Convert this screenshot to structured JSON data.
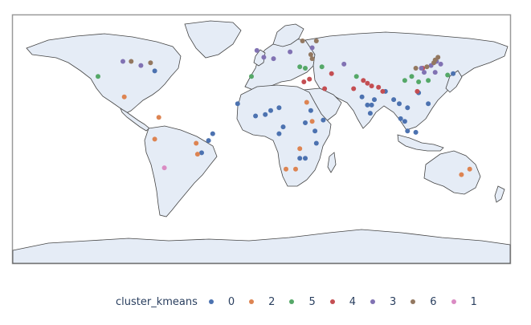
{
  "chart_data": {
    "type": "scatter_geo",
    "projection": "natural earth",
    "land_color": "#e5ecf6",
    "coastline_color": "#444444",
    "legend": {
      "title": "cluster_kmeans",
      "placement": "bottom",
      "items": [
        {
          "label": "0",
          "color": "#4c72b0"
        },
        {
          "label": "2",
          "color": "#dd8452"
        },
        {
          "label": "5",
          "color": "#55a868"
        },
        {
          "label": "4",
          "color": "#c44e52"
        },
        {
          "label": "3",
          "color": "#8172b3"
        },
        {
          "label": "6",
          "color": "#937860"
        },
        {
          "label": "1",
          "color": "#da8bc3"
        }
      ]
    },
    "points": [
      {
        "cluster": "0",
        "lon": -77,
        "lat": 38
      },
      {
        "cluster": "0",
        "lon": -17,
        "lat": 14
      },
      {
        "cluster": "0",
        "lon": -4,
        "lat": 5
      },
      {
        "cluster": "0",
        "lon": 3,
        "lat": 6
      },
      {
        "cluster": "0",
        "lon": 7,
        "lat": 9
      },
      {
        "cluster": "0",
        "lon": 13,
        "lat": 11
      },
      {
        "cluster": "0",
        "lon": 13,
        "lat": -8
      },
      {
        "cluster": "0",
        "lon": 16,
        "lat": -3
      },
      {
        "cluster": "0",
        "lon": 36,
        "lat": 9
      },
      {
        "cluster": "0",
        "lon": 39,
        "lat": -6
      },
      {
        "cluster": "0",
        "lon": 32,
        "lat": 0
      },
      {
        "cluster": "0",
        "lon": 45,
        "lat": 2
      },
      {
        "cluster": "0",
        "lon": 40,
        "lat": -15
      },
      {
        "cluster": "0",
        "lon": 28,
        "lat": -26
      },
      {
        "cluster": "0",
        "lon": 32,
        "lat": -26
      },
      {
        "cluster": "0",
        "lon": 73,
        "lat": 19
      },
      {
        "cluster": "0",
        "lon": 77,
        "lat": 13
      },
      {
        "cluster": "0",
        "lon": 80,
        "lat": 13
      },
      {
        "cluster": "0",
        "lon": 79,
        "lat": 7
      },
      {
        "cluster": "0",
        "lon": 82,
        "lat": 17
      },
      {
        "cluster": "0",
        "lon": 90,
        "lat": 23
      },
      {
        "cluster": "0",
        "lon": 96,
        "lat": 17
      },
      {
        "cluster": "0",
        "lon": 100,
        "lat": 14
      },
      {
        "cluster": "0",
        "lon": 106,
        "lat": 11
      },
      {
        "cluster": "0",
        "lon": 106,
        "lat": -6
      },
      {
        "cluster": "0",
        "lon": 112,
        "lat": -7
      },
      {
        "cluster": "0",
        "lon": 101,
        "lat": 3
      },
      {
        "cluster": "0",
        "lon": 104,
        "lat": 1
      },
      {
        "cluster": "0",
        "lon": 114,
        "lat": 22
      },
      {
        "cluster": "0",
        "lon": 121,
        "lat": 14
      },
      {
        "cluster": "0",
        "lon": 139,
        "lat": 36
      },
      {
        "cluster": "0",
        "lon": -35,
        "lat": -8
      },
      {
        "cluster": "0",
        "lon": -38,
        "lat": -13
      },
      {
        "cluster": "0",
        "lon": -43,
        "lat": -22
      },
      {
        "cluster": "2",
        "lon": -99,
        "lat": 19
      },
      {
        "cluster": "2",
        "lon": -74,
        "lat": 4
      },
      {
        "cluster": "2",
        "lon": -77,
        "lat": -12
      },
      {
        "cluster": "2",
        "lon": -47,
        "lat": -15
      },
      {
        "cluster": "2",
        "lon": -46,
        "lat": -23
      },
      {
        "cluster": "2",
        "lon": 33,
        "lat": 15
      },
      {
        "cluster": "2",
        "lon": 37,
        "lat": 1
      },
      {
        "cluster": "2",
        "lon": 18,
        "lat": -34
      },
      {
        "cluster": "2",
        "lon": 25,
        "lat": -34
      },
      {
        "cluster": "2",
        "lon": 28,
        "lat": -19
      },
      {
        "cluster": "2",
        "lon": 151,
        "lat": -34
      },
      {
        "cluster": "2",
        "lon": 145,
        "lat": -38
      },
      {
        "cluster": "5",
        "lon": -118,
        "lat": 34
      },
      {
        "cluster": "5",
        "lon": -7,
        "lat": 34
      },
      {
        "cluster": "5",
        "lon": 28,
        "lat": 41
      },
      {
        "cluster": "5",
        "lon": 32,
        "lat": 40
      },
      {
        "cluster": "5",
        "lon": 44,
        "lat": 41
      },
      {
        "cluster": "5",
        "lon": 69,
        "lat": 34
      },
      {
        "cluster": "5",
        "lon": 104,
        "lat": 31
      },
      {
        "cluster": "5",
        "lon": 109,
        "lat": 34
      },
      {
        "cluster": "5",
        "lon": 114,
        "lat": 30
      },
      {
        "cluster": "5",
        "lon": 121,
        "lat": 31
      },
      {
        "cluster": "5",
        "lon": 135,
        "lat": 35
      },
      {
        "cluster": "4",
        "lon": 31,
        "lat": 30
      },
      {
        "cluster": "4",
        "lon": 35,
        "lat": 32
      },
      {
        "cluster": "4",
        "lon": 46,
        "lat": 25
      },
      {
        "cluster": "4",
        "lon": 51,
        "lat": 36
      },
      {
        "cluster": "4",
        "lon": 67,
        "lat": 25
      },
      {
        "cluster": "4",
        "lon": 74,
        "lat": 31
      },
      {
        "cluster": "4",
        "lon": 77,
        "lat": 29
      },
      {
        "cluster": "4",
        "lon": 80,
        "lat": 27
      },
      {
        "cluster": "4",
        "lon": 85,
        "lat": 26
      },
      {
        "cluster": "4",
        "lon": 88,
        "lat": 23
      },
      {
        "cluster": "4",
        "lon": 113,
        "lat": 23
      },
      {
        "cluster": "4",
        "lon": 117,
        "lat": 40
      },
      {
        "cluster": "3",
        "lon": -100,
        "lat": 45
      },
      {
        "cluster": "3",
        "lon": -87,
        "lat": 42
      },
      {
        "cluster": "3",
        "lon": -3,
        "lat": 53
      },
      {
        "cluster": "3",
        "lon": 2,
        "lat": 48
      },
      {
        "cluster": "3",
        "lon": 9,
        "lat": 47
      },
      {
        "cluster": "3",
        "lon": 21,
        "lat": 52
      },
      {
        "cluster": "3",
        "lon": 37,
        "lat": 55
      },
      {
        "cluster": "3",
        "lon": 60,
        "lat": 43
      },
      {
        "cluster": "3",
        "lon": 116,
        "lat": 40
      },
      {
        "cluster": "3",
        "lon": 123,
        "lat": 42
      },
      {
        "cluster": "3",
        "lon": 126,
        "lat": 37
      },
      {
        "cluster": "3",
        "lon": 127,
        "lat": 45
      },
      {
        "cluster": "3",
        "lon": 130,
        "lat": 43
      },
      {
        "cluster": "3",
        "lon": 118,
        "lat": 37
      },
      {
        "cluster": "6",
        "lon": -94,
        "lat": 45
      },
      {
        "cluster": "6",
        "lon": -80,
        "lat": 44
      },
      {
        "cluster": "6",
        "lon": 30,
        "lat": 60
      },
      {
        "cluster": "6",
        "lon": 40,
        "lat": 60
      },
      {
        "cluster": "6",
        "lon": 36,
        "lat": 50
      },
      {
        "cluster": "6",
        "lon": 37,
        "lat": 47
      },
      {
        "cluster": "6",
        "lon": 125,
        "lat": 44
      },
      {
        "cluster": "6",
        "lon": 126,
        "lat": 46
      },
      {
        "cluster": "6",
        "lon": 128,
        "lat": 48
      },
      {
        "cluster": "6",
        "lon": 112,
        "lat": 40
      },
      {
        "cluster": "6",
        "lon": 120,
        "lat": 41
      },
      {
        "cluster": "1",
        "lon": -70,
        "lat": -33
      }
    ]
  }
}
